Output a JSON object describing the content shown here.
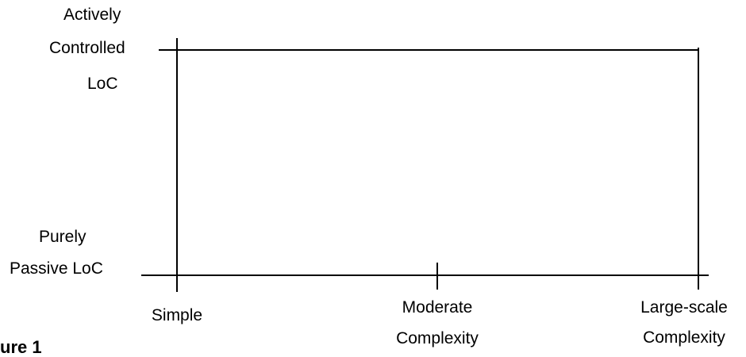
{
  "y_axis": {
    "top_label": [
      "Actively",
      "Controlled",
      "LoC"
    ],
    "bottom_label": [
      "Purely",
      "Passive LoC"
    ]
  },
  "x_axis": {
    "ticks": [
      {
        "label": [
          "Simple"
        ]
      },
      {
        "label": [
          "Moderate",
          "Complexity"
        ]
      },
      {
        "label": [
          "Large-scale",
          "Complexity"
        ]
      }
    ]
  },
  "caption": "ure 1",
  "colors": {
    "line": "#000000",
    "text": "#000000",
    "background": "#ffffff"
  }
}
